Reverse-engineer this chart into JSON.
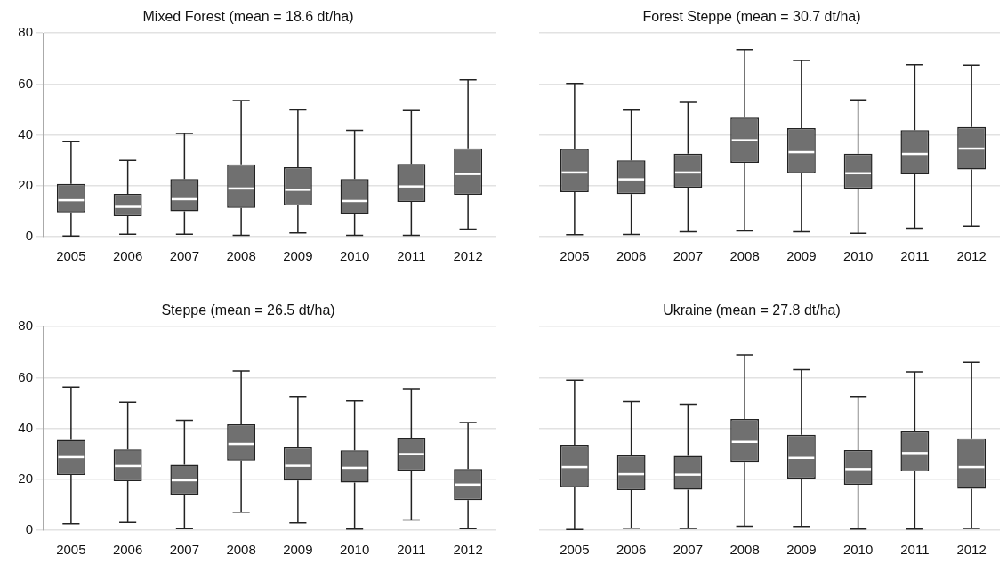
{
  "chart_data": [
    {
      "type": "box",
      "title": "Mixed Forest (mean = 18.6 dt/ha)",
      "categories": [
        "2005",
        "2006",
        "2007",
        "2008",
        "2009",
        "2010",
        "2011",
        "2012"
      ],
      "color": "#707070",
      "ylim": [
        0,
        80
      ],
      "yticks": [
        0,
        20,
        40,
        60,
        80
      ],
      "grid": "y",
      "boxes": [
        {
          "low": 0.3,
          "q1": 9.5,
          "median": 14.3,
          "q3": 20.7,
          "high": 37.3
        },
        {
          "low": 1,
          "q1": 8,
          "median": 11.7,
          "q3": 16.8,
          "high": 30
        },
        {
          "low": 1,
          "q1": 10,
          "median": 14.7,
          "q3": 22.6,
          "high": 40.6
        },
        {
          "low": 0.5,
          "q1": 11.3,
          "median": 18.9,
          "q3": 28.4,
          "high": 53.5
        },
        {
          "low": 1.5,
          "q1": 12.2,
          "median": 18.4,
          "q3": 27.3,
          "high": 49.8
        },
        {
          "low": 0.5,
          "q1": 8.7,
          "median": 14,
          "q3": 22.6,
          "high": 41.8
        },
        {
          "low": 0.5,
          "q1": 13.6,
          "median": 19.7,
          "q3": 28.6,
          "high": 49.6
        },
        {
          "low": 3,
          "q1": 16.4,
          "median": 24.6,
          "q3": 34.7,
          "high": 61.6
        }
      ]
    },
    {
      "type": "box",
      "title": "Forest Steppe (mean = 30.7 dt/ha)",
      "categories": [
        "2005",
        "2006",
        "2007",
        "2008",
        "2009",
        "2010",
        "2011",
        "2012"
      ],
      "color": "#707070",
      "ylim": [
        0,
        80
      ],
      "yticks": [
        0,
        20,
        40,
        60,
        80
      ],
      "grid": "y",
      "tick_labels": "x",
      "boxes": [
        {
          "low": 0.8,
          "q1": 17.5,
          "median": 25.2,
          "q3": 34.5,
          "high": 60.2
        },
        {
          "low": 0.9,
          "q1": 16.7,
          "median": 22.5,
          "q3": 30,
          "high": 49.7
        },
        {
          "low": 1.9,
          "q1": 19.2,
          "median": 25.2,
          "q3": 32.6,
          "high": 52.8
        },
        {
          "low": 2.3,
          "q1": 29,
          "median": 37.9,
          "q3": 46.8,
          "high": 73.5
        },
        {
          "low": 1.9,
          "q1": 24.9,
          "median": 33.2,
          "q3": 42.7,
          "high": 69.2
        },
        {
          "low": 1.3,
          "q1": 18.8,
          "median": 24.9,
          "q3": 32.6,
          "high": 53.8
        },
        {
          "low": 3.3,
          "q1": 24.5,
          "median": 32.5,
          "q3": 41.9,
          "high": 67.6
        },
        {
          "low": 4.1,
          "q1": 26.4,
          "median": 34.6,
          "q3": 43.1,
          "high": 67.4
        }
      ]
    },
    {
      "type": "box",
      "title": "Steppe (mean = 26.5 dt/ha)",
      "categories": [
        "2005",
        "2006",
        "2007",
        "2008",
        "2009",
        "2010",
        "2011",
        "2012"
      ],
      "color": "#707070",
      "ylim": [
        0,
        80
      ],
      "yticks": [
        0,
        20,
        40,
        60,
        80
      ],
      "grid": "y",
      "boxes": [
        {
          "low": 2.5,
          "q1": 21.7,
          "median": 28.7,
          "q3": 35.5,
          "high": 56.2
        },
        {
          "low": 3.1,
          "q1": 19.2,
          "median": 25.2,
          "q3": 31.7,
          "high": 50.3
        },
        {
          "low": 0.6,
          "q1": 14,
          "median": 19.6,
          "q3": 25.7,
          "high": 43.2
        },
        {
          "low": 7.1,
          "q1": 27.4,
          "median": 33.9,
          "q3": 41.6,
          "high": 62.6
        },
        {
          "low": 2.9,
          "q1": 19.5,
          "median": 25.3,
          "q3": 32.6,
          "high": 52.5
        },
        {
          "low": 0.4,
          "q1": 18.7,
          "median": 24.5,
          "q3": 31.4,
          "high": 50.8
        },
        {
          "low": 4,
          "q1": 23.4,
          "median": 29.9,
          "q3": 36.4,
          "high": 55.6
        },
        {
          "low": 0.6,
          "q1": 11.8,
          "median": 17.9,
          "q3": 24,
          "high": 42.3
        }
      ]
    },
    {
      "type": "box",
      "title": "Ukraine (mean = 27.8 dt/ha)",
      "categories": [
        "2005",
        "2006",
        "2007",
        "2008",
        "2009",
        "2010",
        "2011",
        "2012"
      ],
      "color": "#707070",
      "ylim": [
        0,
        80
      ],
      "yticks": [
        0,
        20,
        40,
        60,
        80
      ],
      "grid": "y",
      "tick_labels": "x",
      "boxes": [
        {
          "low": 0.3,
          "q1": 16.9,
          "median": 24.8,
          "q3": 33.6,
          "high": 59
        },
        {
          "low": 0.8,
          "q1": 15.7,
          "median": 22,
          "q3": 29.5,
          "high": 50.5
        },
        {
          "low": 0.7,
          "q1": 15.9,
          "median": 21.8,
          "q3": 29.2,
          "high": 49.5
        },
        {
          "low": 1.6,
          "q1": 26.8,
          "median": 34.7,
          "q3": 43.7,
          "high": 68.9
        },
        {
          "low": 1.5,
          "q1": 20.3,
          "median": 28.4,
          "q3": 37.5,
          "high": 63.1
        },
        {
          "low": 0.4,
          "q1": 17.8,
          "median": 24,
          "q3": 31.5,
          "high": 52.5
        },
        {
          "low": 0.4,
          "q1": 23.1,
          "median": 30.3,
          "q3": 38.8,
          "high": 62.2
        },
        {
          "low": 0.7,
          "q1": 16.3,
          "median": 24.8,
          "q3": 36.1,
          "high": 66
        }
      ]
    }
  ]
}
